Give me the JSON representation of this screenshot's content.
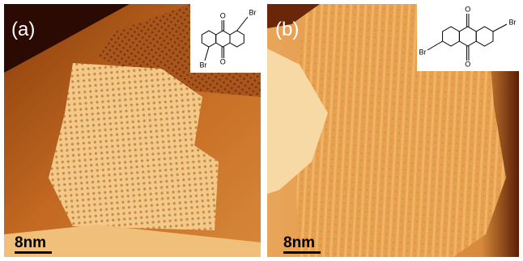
{
  "panels": [
    {
      "label": "(a)",
      "scale_bar": "8nm",
      "molecule": {
        "atoms": [
          "O",
          "O",
          "Br",
          "Br"
        ]
      }
    },
    {
      "label": "(b)",
      "scale_bar": "8nm",
      "molecule": {
        "atoms": [
          "O",
          "O",
          "Br",
          "Br"
        ]
      }
    }
  ]
}
